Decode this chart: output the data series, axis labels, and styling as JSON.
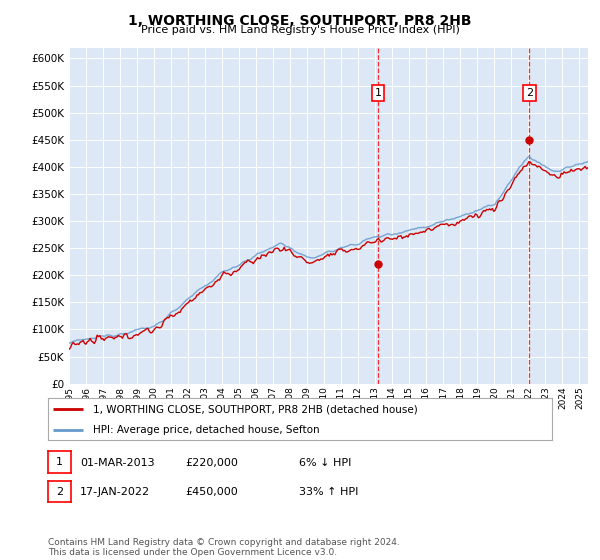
{
  "title": "1, WORTHING CLOSE, SOUTHPORT, PR8 2HB",
  "subtitle": "Price paid vs. HM Land Registry's House Price Index (HPI)",
  "ylim": [
    0,
    620000
  ],
  "yticks": [
    0,
    50000,
    100000,
    150000,
    200000,
    250000,
    300000,
    350000,
    400000,
    450000,
    500000,
    550000,
    600000
  ],
  "ytick_labels": [
    "£0",
    "£50K",
    "£100K",
    "£150K",
    "£200K",
    "£250K",
    "£300K",
    "£350K",
    "£400K",
    "£450K",
    "£500K",
    "£550K",
    "£600K"
  ],
  "line_red_color": "#cc0000",
  "line_blue_color": "#6699cc",
  "plot_bg_color": "#dce8f5",
  "grid_color": "#ffffff",
  "sale1_date_x": 2013.17,
  "sale1_price": 220000,
  "sale2_date_x": 2022.05,
  "sale2_price": 450000,
  "legend_line1": "1, WORTHING CLOSE, SOUTHPORT, PR8 2HB (detached house)",
  "legend_line2": "HPI: Average price, detached house, Sefton",
  "table_row1": [
    "1",
    "01-MAR-2013",
    "£220,000",
    "6% ↓ HPI"
  ],
  "table_row2": [
    "2",
    "17-JAN-2022",
    "£450,000",
    "33% ↑ HPI"
  ],
  "footer": "Contains HM Land Registry data © Crown copyright and database right 2024.\nThis data is licensed under the Open Government Licence v3.0.",
  "xmin": 1995,
  "xmax": 2025.5,
  "xstart": 1995,
  "xend": 2026
}
